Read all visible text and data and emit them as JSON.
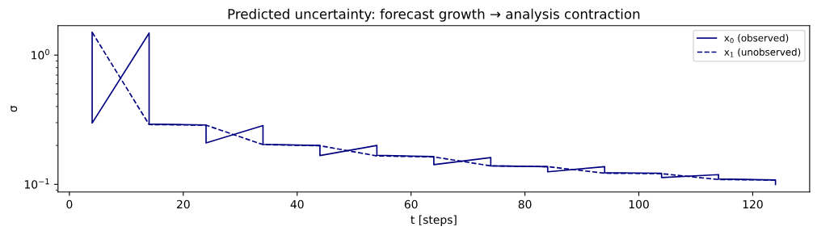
{
  "chart_data": {
    "type": "line",
    "title": "Predicted uncertainty: forecast growth → analysis contraction",
    "xlabel": "t [steps]",
    "ylabel": "σ",
    "series": [
      {
        "name": "x$_{0}$ (observed)",
        "color": "#000080",
        "line_style": "solid",
        "x": [
          4,
          4,
          14,
          14,
          24,
          24,
          34,
          34,
          44,
          44,
          54,
          54,
          64,
          64,
          74,
          74,
          84,
          84,
          94,
          94,
          104,
          104,
          114,
          114,
          124,
          124
        ],
        "values": [
          1.5,
          0.298,
          1.48,
          0.293,
          0.288,
          0.209,
          0.285,
          0.204,
          0.2,
          0.167,
          0.2,
          0.168,
          0.164,
          0.142,
          0.161,
          0.139,
          0.137,
          0.125,
          0.137,
          0.123,
          0.122,
          0.113,
          0.119,
          0.11,
          0.108,
          0.1
        ]
      },
      {
        "name": "x$_{1}$ (unobserved)",
        "color": "#000080",
        "line_style": "dashed",
        "x": [
          4,
          14,
          24,
          34,
          44,
          54,
          64,
          74,
          84,
          94,
          104,
          114,
          124
        ],
        "values": [
          1.5,
          0.29,
          0.287,
          0.203,
          0.199,
          0.166,
          0.163,
          0.139,
          0.137,
          0.122,
          0.121,
          0.109,
          0.108
        ]
      }
    ],
    "log": "y",
    "xlim": [
      -2,
      130
    ],
    "xticks": [
      0,
      20,
      40,
      60,
      80,
      100,
      120
    ],
    "ylim": [
      0.0873,
      1.69
    ],
    "yticks": [
      {
        "value": 0.1,
        "label": "10$^{−1}$"
      },
      {
        "value": 1,
        "label": "10$^{0}$"
      }
    ],
    "grid": false,
    "legend": "top right",
    "marker": "none"
  }
}
